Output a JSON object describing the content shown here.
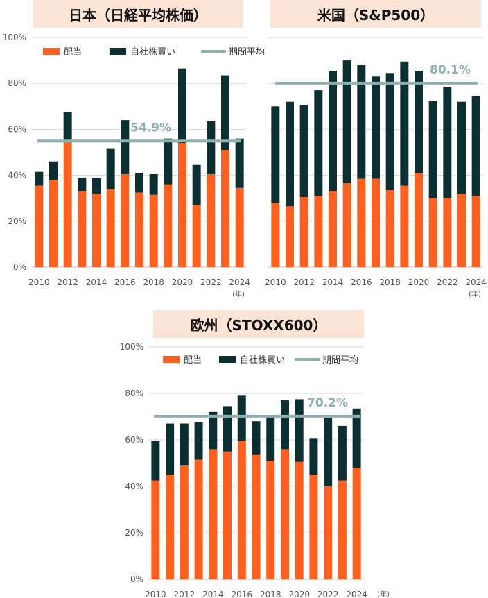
{
  "colors": {
    "dividend": "#ff5f1f",
    "buyback": "#0c3032",
    "average": "#8fb0b1",
    "banner": "#fbe3d6"
  },
  "chart_data": [
    {
      "type": "bar",
      "title": "日本（日経平均株価）",
      "categories": [
        "2010",
        "2011",
        "2012",
        "2013",
        "2014",
        "2015",
        "2016",
        "2017",
        "2018",
        "2019",
        "2020",
        "2021",
        "2022",
        "2023",
        "2024"
      ],
      "x_tick_labels": [
        "2010",
        "2012",
        "2014",
        "2016",
        "2018",
        "2020",
        "2022",
        "2024"
      ],
      "unit_label": "(年)",
      "y_tick_labels": [
        "0%",
        "20%",
        "40%",
        "60%",
        "80%",
        "100%"
      ],
      "ylim": [
        0,
        100
      ],
      "legend": [
        "配当",
        "自社株買い",
        "期間平均"
      ],
      "series": [
        {
          "name": "配当",
          "values": [
            35.5,
            38,
            54.5,
            33,
            32,
            34,
            40.5,
            32.5,
            31.5,
            36,
            54,
            27,
            40.5,
            51,
            34.5
          ]
        },
        {
          "name": "自社株買い",
          "values": [
            6,
            8,
            13,
            6,
            7,
            17.5,
            23.5,
            8.5,
            9,
            20,
            32.5,
            17.5,
            23,
            32.5,
            21.5
          ]
        }
      ],
      "average": 54.9,
      "average_label": "54.9%"
    },
    {
      "type": "bar",
      "title": "米国（S&P500）",
      "categories": [
        "2010",
        "2011",
        "2012",
        "2013",
        "2014",
        "2015",
        "2016",
        "2017",
        "2018",
        "2019",
        "2020",
        "2021",
        "2022",
        "2023",
        "2024"
      ],
      "x_tick_labels": [
        "2010",
        "2012",
        "2014",
        "2016",
        "2018",
        "2020",
        "2022",
        "2024"
      ],
      "unit_label": "(年)",
      "ylim": [
        0,
        100
      ],
      "series": [
        {
          "name": "配当",
          "values": [
            28,
            26.5,
            30.5,
            31,
            33,
            36.5,
            38.5,
            38.5,
            33.5,
            35.5,
            41,
            30,
            30,
            32,
            31
          ]
        },
        {
          "name": "自社株買い",
          "values": [
            42,
            45.5,
            40,
            46,
            52.5,
            53.5,
            49.5,
            44.5,
            51,
            54,
            44.5,
            42.5,
            48.5,
            40,
            43.5
          ]
        }
      ],
      "average": 80.1,
      "average_label": "80.1%"
    },
    {
      "type": "bar",
      "title": "欧州（STOXX600）",
      "categories": [
        "2010",
        "2011",
        "2012",
        "2013",
        "2014",
        "2015",
        "2016",
        "2017",
        "2018",
        "2019",
        "2020",
        "2021",
        "2022",
        "2023",
        "2024"
      ],
      "x_tick_labels": [
        "2010",
        "2012",
        "2014",
        "2016",
        "2018",
        "2020",
        "2022",
        "2024"
      ],
      "unit_label": "(年)",
      "y_tick_labels": [
        "0%",
        "20%",
        "40%",
        "60%",
        "80%",
        "100%"
      ],
      "ylim": [
        0,
        100
      ],
      "legend": [
        "配当",
        "自社株買い",
        "期間平均"
      ],
      "series": [
        {
          "name": "配当",
          "values": [
            42.5,
            45,
            49,
            51.5,
            56,
            55,
            59.5,
            53.5,
            51,
            56,
            50.5,
            45,
            40,
            42.5,
            48
          ]
        },
        {
          "name": "自社株買い",
          "values": [
            17,
            22,
            18,
            16,
            16,
            19.5,
            19.5,
            14.5,
            19.5,
            21,
            27,
            15.5,
            29.5,
            23.5,
            25.5
          ]
        }
      ],
      "average": 70.2,
      "average_label": "70.2%"
    }
  ]
}
